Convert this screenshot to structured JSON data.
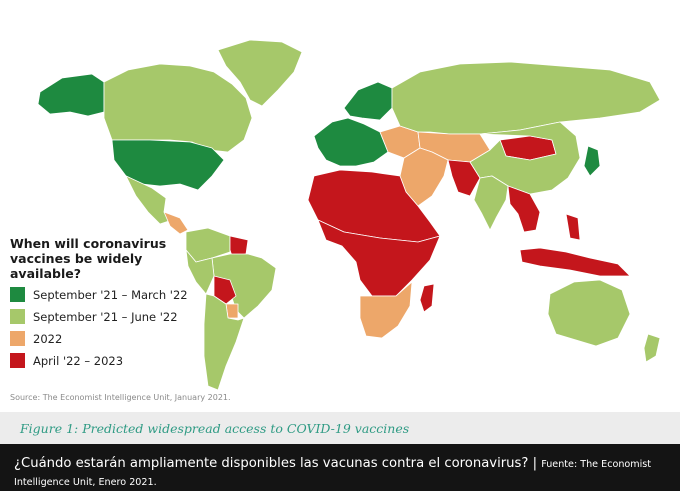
{
  "legend": {
    "title": "When will coronavirus vaccines be widely available?",
    "items": [
      {
        "label": "September '21 – March '22",
        "color": "#1e8a40"
      },
      {
        "label": "September '21 – June '22",
        "color": "#a6c86a"
      },
      {
        "label": "2022",
        "color": "#eda76a"
      },
      {
        "label": "April '22 – 2023",
        "color": "#c4161c"
      }
    ]
  },
  "source_line": "Source: The Economist Intelligence Unit, January 2021.",
  "figure_caption": "Figure 1: Predicted widespread access to COVID-19 vaccines",
  "footer": {
    "main": "¿Cuándo estarán ampliamente disponibles las vacunas contra el coronavirus?",
    "separator": " | ",
    "source": "Fuente: The Economist Intelligence Unit, Enero 2021."
  },
  "map_data": {
    "type": "choropleth",
    "regions": [
      {
        "name": "Alaska",
        "category": 0
      },
      {
        "name": "Canada",
        "category": 1
      },
      {
        "name": "Greenland",
        "category": 1
      },
      {
        "name": "United States",
        "category": 0
      },
      {
        "name": "Mexico",
        "category": 1
      },
      {
        "name": "Central America",
        "category": 2
      },
      {
        "name": "Colombia and Venezuela",
        "category": 1
      },
      {
        "name": "Guyana",
        "category": 3
      },
      {
        "name": "Brazil",
        "category": 1
      },
      {
        "name": "Peru",
        "category": 1
      },
      {
        "name": "Bolivia",
        "category": 3
      },
      {
        "name": "Paraguay",
        "category": 2
      },
      {
        "name": "Argentina and Chile",
        "category": 1
      },
      {
        "name": "Western Europe",
        "category": 0
      },
      {
        "name": "Scandinavia",
        "category": 0
      },
      {
        "name": "Eastern Europe",
        "category": 2
      },
      {
        "name": "Russia",
        "category": 1
      },
      {
        "name": "Central Asia",
        "category": 2
      },
      {
        "name": "Middle East",
        "category": 2
      },
      {
        "name": "Afghanistan and Pakistan",
        "category": 3
      },
      {
        "name": "Mongolia",
        "category": 3
      },
      {
        "name": "China",
        "category": 1
      },
      {
        "name": "India",
        "category": 1
      },
      {
        "name": "Southeast Asia",
        "category": 3
      },
      {
        "name": "Japan",
        "category": 0
      },
      {
        "name": "Indonesia and Philippines",
        "category": 3
      },
      {
        "name": "North Africa",
        "category": 3
      },
      {
        "name": "Central Africa",
        "category": 3
      },
      {
        "name": "Southern Africa",
        "category": 2
      },
      {
        "name": "Madagascar",
        "category": 3
      },
      {
        "name": "Australia",
        "category": 1
      },
      {
        "name": "New Zealand",
        "category": 1
      }
    ]
  }
}
